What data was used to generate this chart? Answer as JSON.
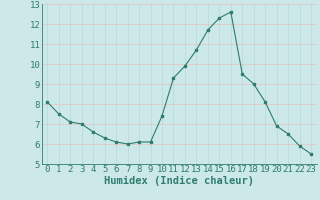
{
  "x": [
    0,
    1,
    2,
    3,
    4,
    5,
    6,
    7,
    8,
    9,
    10,
    11,
    12,
    13,
    14,
    15,
    16,
    17,
    18,
    19,
    20,
    21,
    22,
    23
  ],
  "y": [
    8.1,
    7.5,
    7.1,
    7.0,
    6.6,
    6.3,
    6.1,
    6.0,
    6.1,
    6.1,
    7.4,
    9.3,
    9.9,
    10.7,
    11.7,
    12.3,
    12.6,
    9.5,
    9.0,
    8.1,
    6.9,
    6.5,
    5.9,
    5.5
  ],
  "xlabel": "Humidex (Indice chaleur)",
  "ylabel": "",
  "ylim": [
    5,
    13
  ],
  "xlim": [
    -0.5,
    23.5
  ],
  "yticks": [
    5,
    6,
    7,
    8,
    9,
    10,
    11,
    12,
    13
  ],
  "xticks": [
    0,
    1,
    2,
    3,
    4,
    5,
    6,
    7,
    8,
    9,
    10,
    11,
    12,
    13,
    14,
    15,
    16,
    17,
    18,
    19,
    20,
    21,
    22,
    23
  ],
  "line_color": "#2e7d6e",
  "marker_color": "#2e7d6e",
  "bg_color": "#cce8e8",
  "grid_v_color": "#b8d8d8",
  "grid_h_color": "#e8c0c0",
  "tick_label_color": "#2e7d6e",
  "xlabel_color": "#2e7d6e",
  "font_size": 6.5
}
